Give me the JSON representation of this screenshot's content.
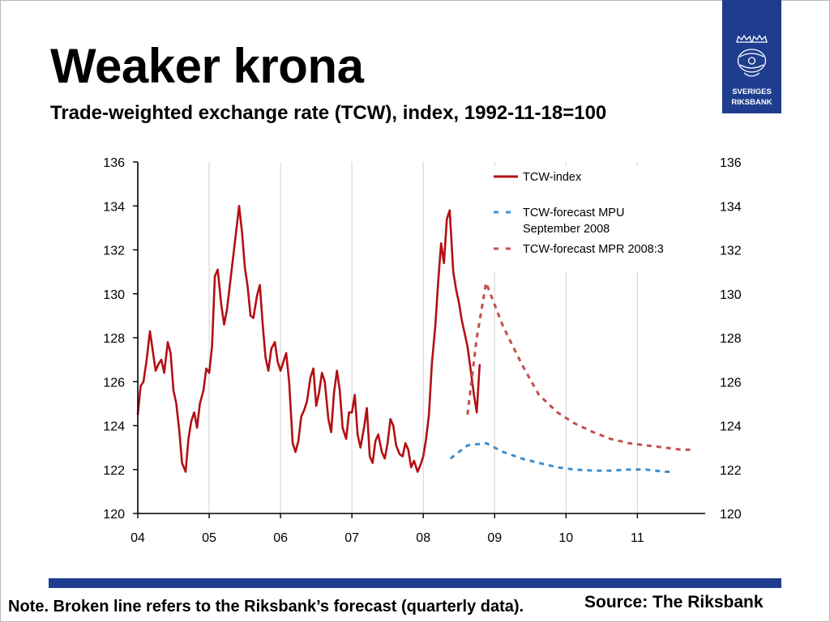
{
  "slide": {
    "title": "Weaker krona",
    "subtitle": "Trade-weighted exchange rate (TCW), index, 1992-11-18=100",
    "note": "Note. Broken line refers to the Riksbank’s forecast (quarterly data).",
    "source": "Source: The Riksbank"
  },
  "logo": {
    "line1": "SVERIGES",
    "line2": "RIKSBANK",
    "background": "#1f3d8f",
    "icon": "crowned-coat-of-arms-icon"
  },
  "chart_data": {
    "type": "line",
    "title": "",
    "xlabel": "",
    "ylabel": "",
    "x_ticks": [
      "04",
      "05",
      "06",
      "07",
      "08",
      "09",
      "10",
      "11"
    ],
    "xlim": [
      2004.0,
      2011.95
    ],
    "y_ticks": [
      120,
      122,
      124,
      126,
      128,
      130,
      132,
      134,
      136
    ],
    "ylim": [
      120,
      136
    ],
    "y_axis_right": true,
    "grid": "vertical",
    "legend_position": "top-right",
    "series": [
      {
        "name": "TCW-index",
        "color": "#b40f14",
        "style": "solid",
        "x": [
          2004.0,
          2004.04,
          2004.08,
          2004.12,
          2004.17,
          2004.21,
          2004.25,
          2004.29,
          2004.33,
          2004.37,
          2004.42,
          2004.46,
          2004.5,
          2004.54,
          2004.58,
          2004.62,
          2004.67,
          2004.71,
          2004.75,
          2004.79,
          2004.83,
          2004.87,
          2004.92,
          2004.96,
          2005.0,
          2005.04,
          2005.08,
          2005.12,
          2005.17,
          2005.21,
          2005.25,
          2005.29,
          2005.33,
          2005.37,
          2005.42,
          2005.46,
          2005.5,
          2005.54,
          2005.58,
          2005.62,
          2005.67,
          2005.71,
          2005.75,
          2005.79,
          2005.83,
          2005.87,
          2005.92,
          2005.96,
          2006.0,
          2006.04,
          2006.08,
          2006.12,
          2006.17,
          2006.21,
          2006.25,
          2006.29,
          2006.33,
          2006.37,
          2006.42,
          2006.46,
          2006.5,
          2006.54,
          2006.58,
          2006.62,
          2006.67,
          2006.71,
          2006.75,
          2006.79,
          2006.83,
          2006.87,
          2006.92,
          2006.96,
          2007.0,
          2007.04,
          2007.08,
          2007.12,
          2007.17,
          2007.21,
          2007.25,
          2007.29,
          2007.33,
          2007.37,
          2007.42,
          2007.46,
          2007.5,
          2007.54,
          2007.58,
          2007.62,
          2007.67,
          2007.71,
          2007.75,
          2007.79,
          2007.83,
          2007.87,
          2007.92,
          2007.96,
          2008.0,
          2008.04,
          2008.08,
          2008.12,
          2008.17,
          2008.21,
          2008.25,
          2008.29,
          2008.33,
          2008.37,
          2008.42,
          2008.46,
          2008.5,
          2008.54,
          2008.58,
          2008.62,
          2008.67,
          2008.71,
          2008.75,
          2008.79
        ],
        "values": [
          124.5,
          125.8,
          126.0,
          126.9,
          128.3,
          127.4,
          126.5,
          126.8,
          127.0,
          126.4,
          127.8,
          127.3,
          125.6,
          125.0,
          123.8,
          122.3,
          121.9,
          123.4,
          124.2,
          124.6,
          123.9,
          125.0,
          125.6,
          126.6,
          126.4,
          127.6,
          130.8,
          131.1,
          129.5,
          128.6,
          129.3,
          130.4,
          131.5,
          132.6,
          134.0,
          132.8,
          131.2,
          130.3,
          129.0,
          128.9,
          129.9,
          130.4,
          128.6,
          127.1,
          126.5,
          127.5,
          127.8,
          126.9,
          126.5,
          126.9,
          127.3,
          126.0,
          123.2,
          122.8,
          123.3,
          124.4,
          124.7,
          125.1,
          126.2,
          126.6,
          124.9,
          125.5,
          126.4,
          126.0,
          124.3,
          123.7,
          125.5,
          126.5,
          125.6,
          123.9,
          123.4,
          124.6,
          124.6,
          125.4,
          123.6,
          123.0,
          123.9,
          124.8,
          122.6,
          122.3,
          123.3,
          123.6,
          122.8,
          122.5,
          123.2,
          124.3,
          124.0,
          123.1,
          122.7,
          122.6,
          123.2,
          122.9,
          122.1,
          122.4,
          121.9,
          122.2,
          122.6,
          123.4,
          124.5,
          126.8,
          128.6,
          130.6,
          132.3,
          131.4,
          133.4,
          133.8,
          131.0,
          130.2,
          129.6,
          128.8,
          128.2,
          127.6,
          126.4,
          125.4,
          124.6,
          126.8
        ]
      },
      {
        "name": "TCW-forecast MPU September 2008",
        "color": "#3a8fd0",
        "style": "dashed",
        "x": [
          2008.38,
          2008.62,
          2008.88,
          2009.12,
          2009.38,
          2009.62,
          2009.88,
          2010.12,
          2010.38,
          2010.62,
          2010.88,
          2011.12,
          2011.38,
          2011.5
        ],
        "values": [
          122.5,
          123.1,
          123.2,
          122.8,
          122.5,
          122.3,
          122.1,
          122.0,
          121.95,
          121.95,
          122.0,
          122.0,
          121.9,
          121.9
        ]
      },
      {
        "name": "TCW-forecast MPR 2008:3",
        "color": "#c0504d",
        "style": "dashed",
        "x": [
          2008.62,
          2008.75,
          2008.88,
          2009.0,
          2009.12,
          2009.38,
          2009.62,
          2009.88,
          2010.12,
          2010.38,
          2010.62,
          2010.88,
          2011.12,
          2011.38,
          2011.62,
          2011.75
        ],
        "values": [
          124.5,
          128.0,
          130.5,
          129.5,
          128.5,
          126.8,
          125.4,
          124.6,
          124.1,
          123.7,
          123.4,
          123.2,
          123.1,
          123.0,
          122.9,
          122.9
        ]
      }
    ],
    "legend": [
      {
        "label_lines": [
          "TCW-index"
        ],
        "color": "#b40f14",
        "style": "solid"
      },
      {
        "label_lines": [
          "TCW-forecast MPU",
          "September 2008"
        ],
        "color": "#3a8fd0",
        "style": "dashed"
      },
      {
        "label_lines": [
          "TCW-forecast MPR 2008:3"
        ],
        "color": "#c0504d",
        "style": "dashed"
      }
    ]
  }
}
